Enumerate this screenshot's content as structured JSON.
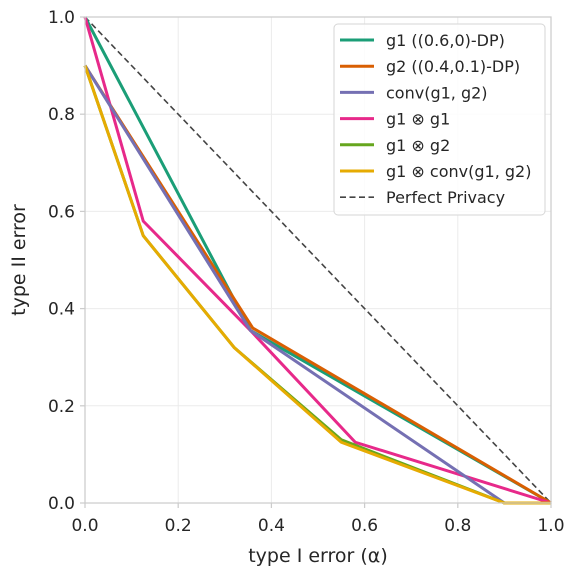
{
  "chart_data": {
    "type": "line",
    "xlabel": "type I error (α)",
    "ylabel": "type II error",
    "xlim": [
      0,
      1
    ],
    "ylim": [
      0,
      1
    ],
    "xticks": [
      "0.0",
      "0.2",
      "0.4",
      "0.6",
      "0.8",
      "1.0"
    ],
    "yticks": [
      "0.0",
      "0.2",
      "0.4",
      "0.6",
      "0.8",
      "1.0"
    ],
    "grid": true,
    "legend_position": "top-right",
    "series": [
      {
        "name": "g1 ((0.6,0)-DP)",
        "color": "#1b9e77",
        "style": "solid",
        "x": [
          0,
          0.355,
          1
        ],
        "y": [
          1,
          0.355,
          0
        ]
      },
      {
        "name": "g2 ((0.4,0.1)-DP)",
        "color": "#d95f02",
        "style": "solid",
        "x": [
          0,
          0.36,
          1
        ],
        "y": [
          0.9,
          0.36,
          0
        ]
      },
      {
        "name": "conv(g1, g2)",
        "color": "#7570b3",
        "style": "solid",
        "x": [
          0,
          0.355,
          0.9,
          1
        ],
        "y": [
          0.9,
          0.355,
          0,
          0
        ]
      },
      {
        "name": "g1 ⊗ g1",
        "color": "#e7298a",
        "style": "solid",
        "x": [
          0,
          0.125,
          0.355,
          0.58,
          1
        ],
        "y": [
          1,
          0.58,
          0.355,
          0.125,
          0
        ]
      },
      {
        "name": "g1 ⊗ g2",
        "color": "#66a61e",
        "style": "solid",
        "x": [
          0,
          0.125,
          0.32,
          0.55,
          0.9,
          1
        ],
        "y": [
          0.9,
          0.55,
          0.32,
          0.13,
          0,
          0
        ]
      },
      {
        "name": "g1 ⊗ conv(g1, g2)",
        "color": "#e6ab02",
        "style": "solid",
        "x": [
          0,
          0.125,
          0.32,
          0.55,
          0.9,
          1
        ],
        "y": [
          0.9,
          0.55,
          0.32,
          0.125,
          0,
          0
        ]
      },
      {
        "name": "Perfect Privacy",
        "color": "#444444",
        "style": "dashed",
        "x": [
          0,
          1
        ],
        "y": [
          1,
          0
        ]
      }
    ]
  }
}
